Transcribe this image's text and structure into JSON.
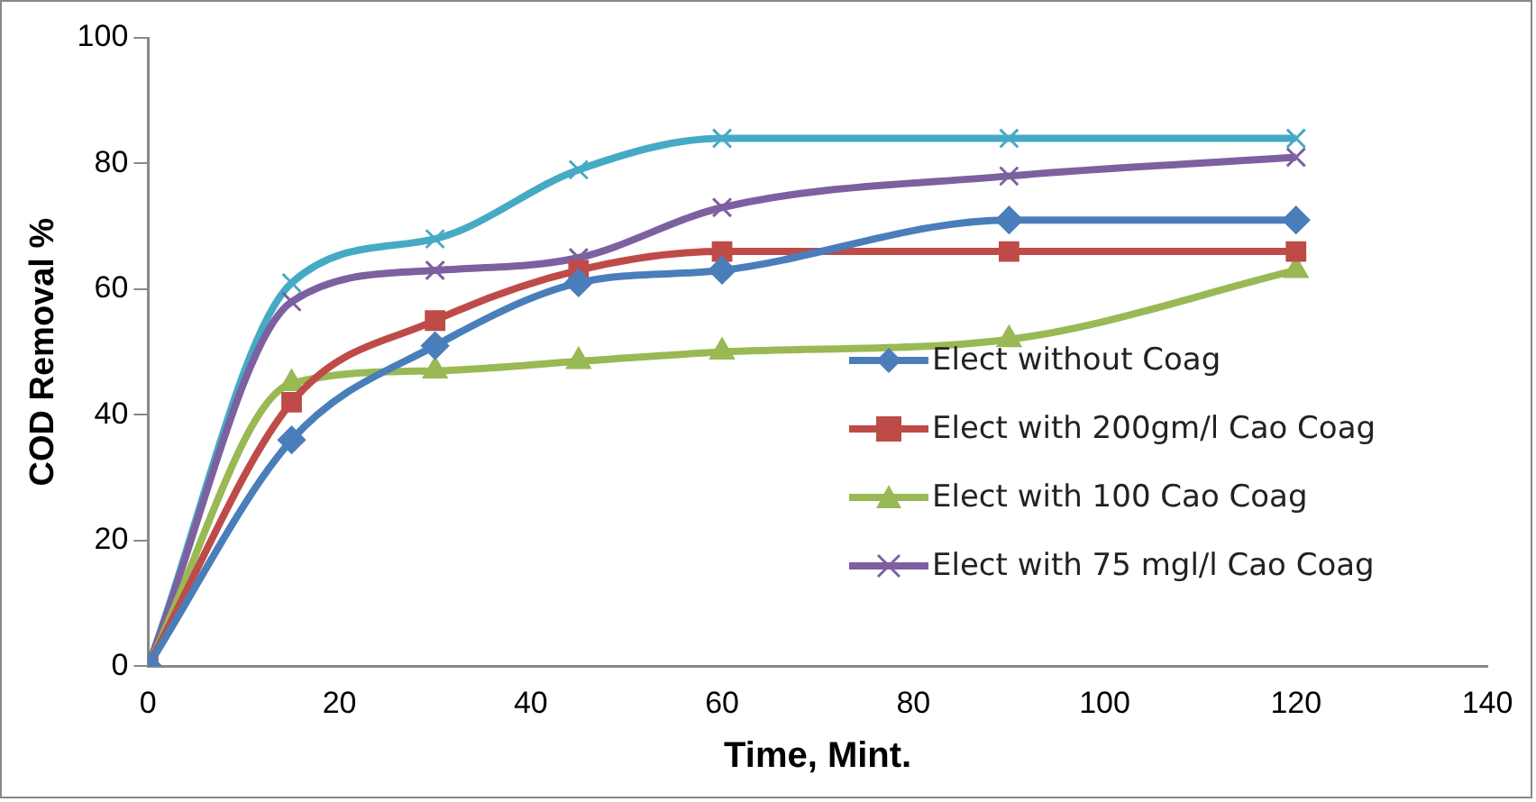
{
  "chart_data": {
    "type": "line",
    "xlabel": "Time, Mint.",
    "ylabel": "COD Removal %",
    "x": [
      0,
      15,
      30,
      45,
      60,
      90,
      120
    ],
    "xlim": [
      0,
      140
    ],
    "xticks": [
      0,
      20,
      40,
      60,
      80,
      100,
      120,
      140
    ],
    "ylim": [
      0,
      100
    ],
    "yticks": [
      0,
      20,
      40,
      60,
      80,
      100
    ],
    "grid": false,
    "legend": "bottom right",
    "series": [
      {
        "name": "Elect without Coag",
        "color": "#4a7ebb",
        "marker": "diamond",
        "values": [
          0,
          36,
          51,
          61,
          63,
          71,
          71
        ]
      },
      {
        "name": "Elect with 200gm/l Cao Coag",
        "color": "#be4b48",
        "marker": "square",
        "values": [
          0,
          42,
          55,
          63,
          66,
          66,
          66
        ]
      },
      {
        "name": "Elect with 100 Cao Coag",
        "color": "#98b954",
        "marker": "triangle",
        "values": [
          0,
          45,
          47,
          48.5,
          50,
          52,
          63
        ]
      },
      {
        "name": "Elect with 75 mgl/l Cao Coag",
        "color": "#7d60a0",
        "marker": "cross",
        "values": [
          0,
          58,
          63,
          65,
          73,
          78,
          81
        ]
      },
      {
        "color": "#46aac5",
        "marker": "cross",
        "values": [
          0,
          61,
          68,
          79,
          84,
          84,
          84
        ]
      }
    ]
  }
}
